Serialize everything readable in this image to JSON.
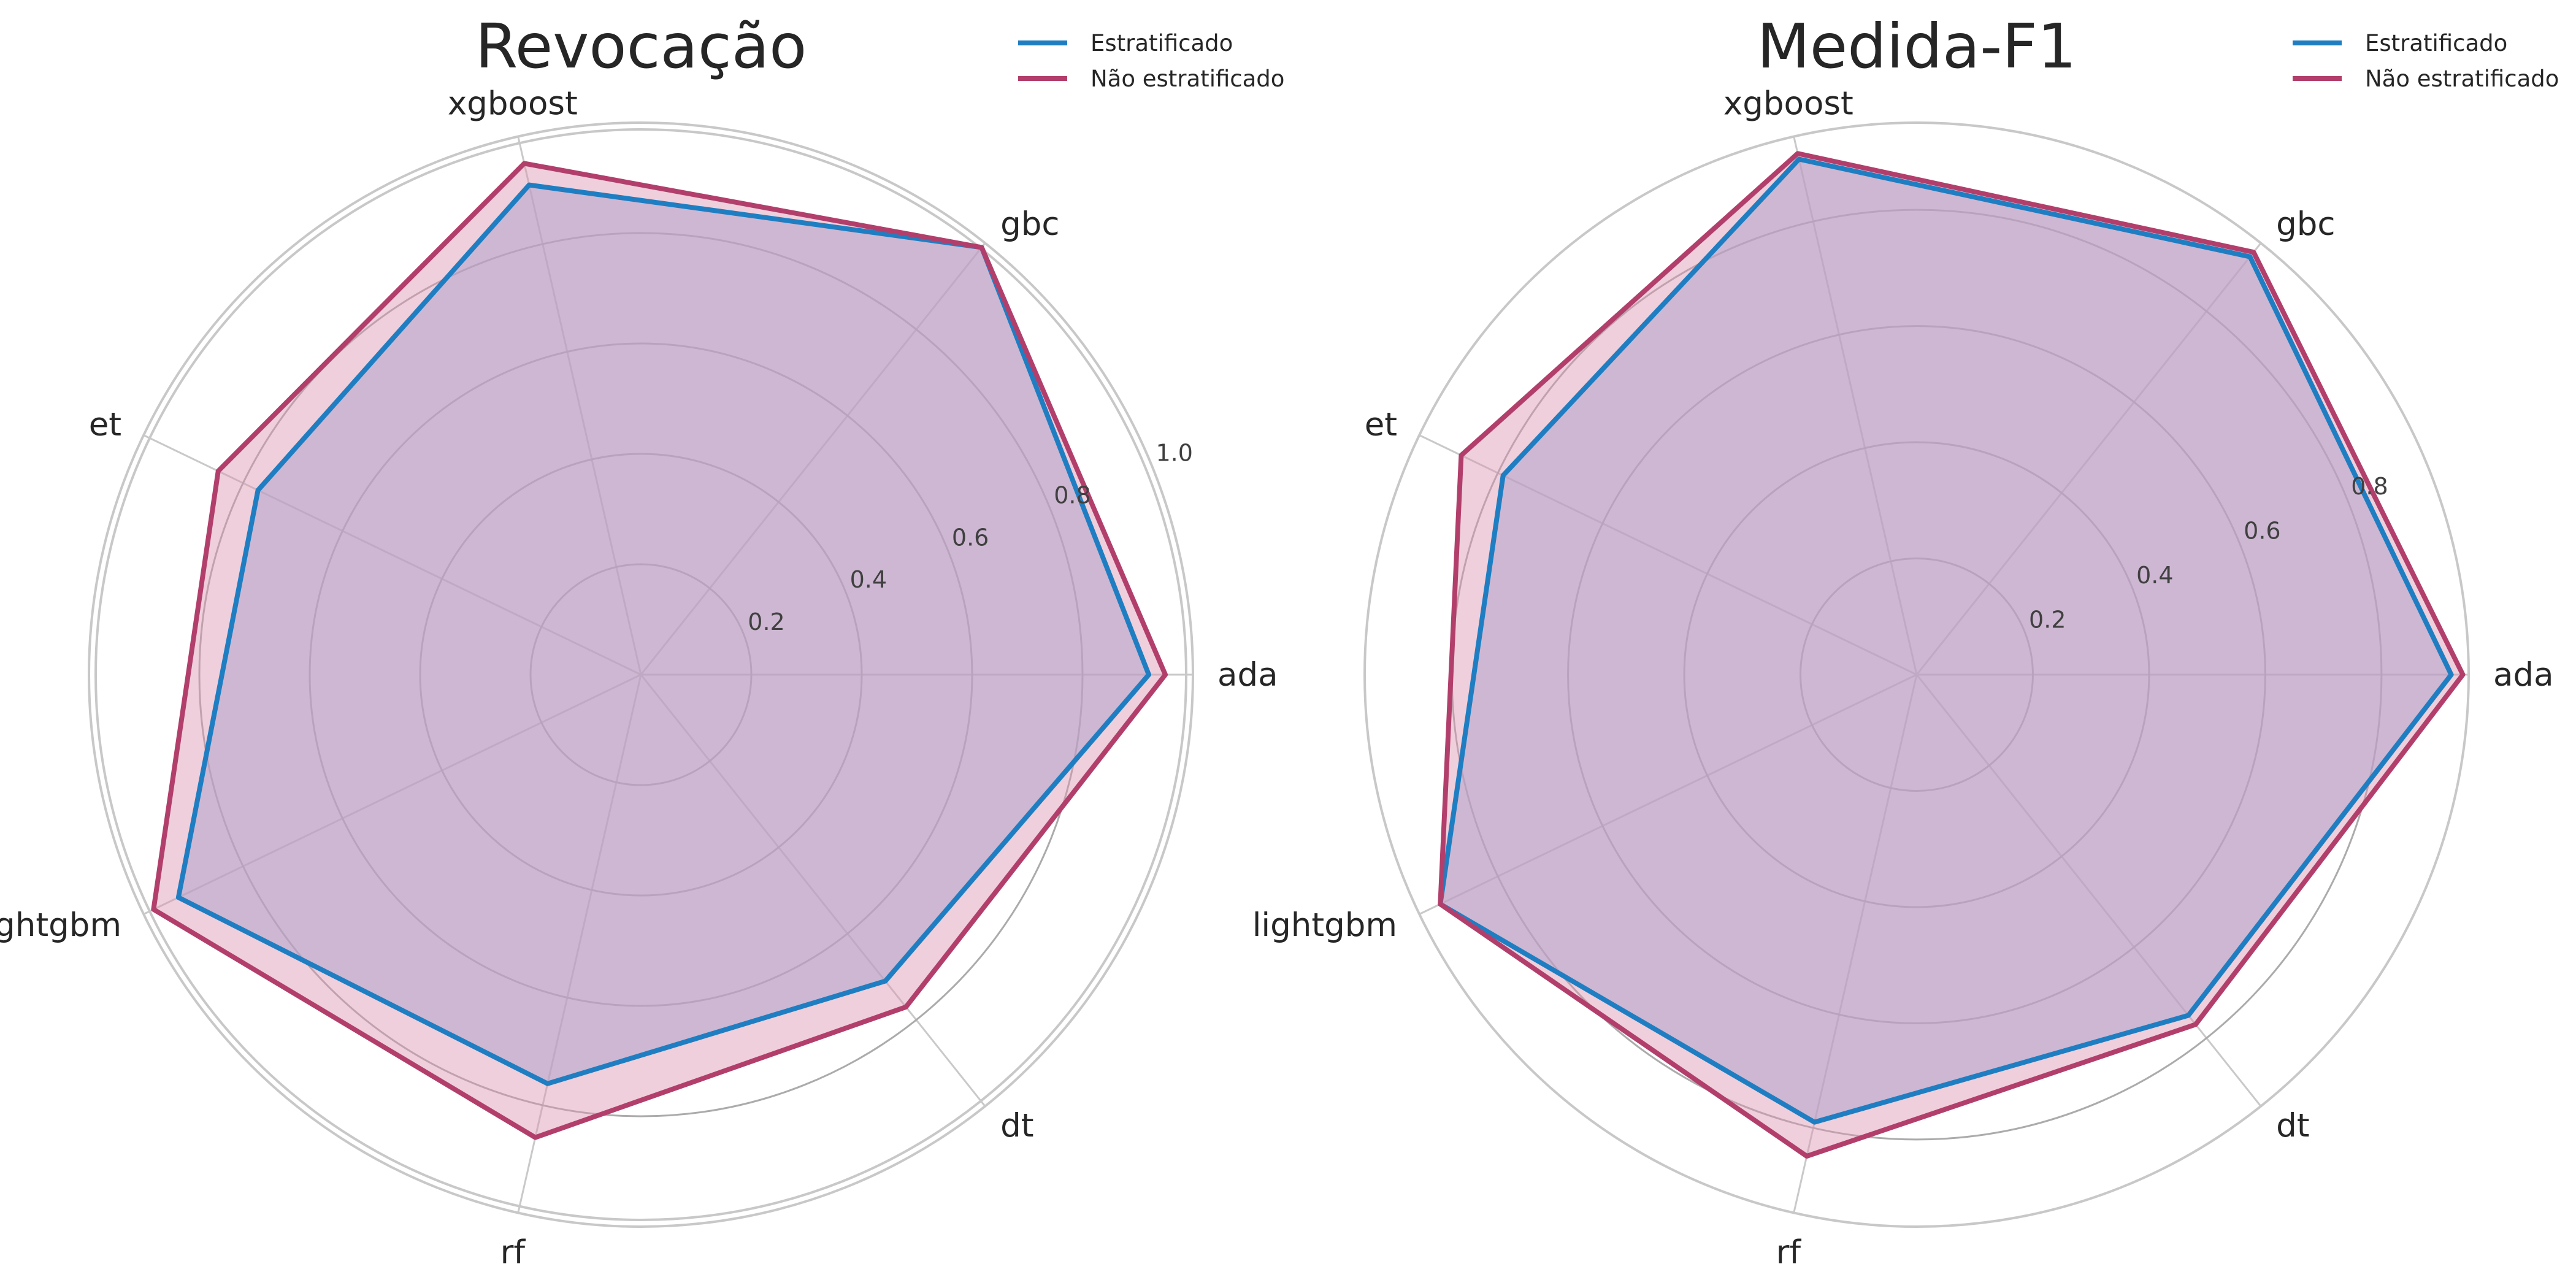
{
  "colors": {
    "stratified": "#1f7ec2",
    "non_stratified": "#b23f6b",
    "fill_stratified": "#8faee0",
    "fill_non_stratified": "#dc94b0"
  },
  "chart_data": [
    {
      "type": "radar",
      "title": "Revocação",
      "categories": [
        "ada",
        "gbc",
        "xgboost",
        "et",
        "lightgbm",
        "rf",
        "dt"
      ],
      "rlim": [
        0,
        1.0
      ],
      "rticks": [
        0.2,
        0.4,
        0.6,
        0.8,
        1.0
      ],
      "rtick_labels": [
        "0.2",
        "0.4",
        "0.6",
        "0.8",
        "1.0"
      ],
      "series": [
        {
          "name": "Estratificado",
          "values": [
            0.92,
            0.99,
            0.91,
            0.77,
            0.93,
            0.76,
            0.71
          ]
        },
        {
          "name": "Não estratificado",
          "values": [
            0.95,
            0.99,
            0.95,
            0.85,
            0.98,
            0.86,
            0.77
          ]
        }
      ],
      "legend": "top-right",
      "grid": true
    },
    {
      "type": "radar",
      "title": "Medida-F1",
      "categories": [
        "ada",
        "gbc",
        "xgboost",
        "et",
        "lightgbm",
        "rf",
        "dt"
      ],
      "rlim": [
        0,
        0.95
      ],
      "rticks": [
        0.2,
        0.4,
        0.6,
        0.8
      ],
      "rtick_labels": [
        "0.2",
        "0.4",
        "0.6",
        "0.8"
      ],
      "series": [
        {
          "name": "Estratificado",
          "values": [
            0.92,
            0.92,
            0.91,
            0.79,
            0.91,
            0.79,
            0.75
          ]
        },
        {
          "name": "Não estratificado",
          "values": [
            0.94,
            0.93,
            0.92,
            0.87,
            0.91,
            0.85,
            0.77
          ]
        }
      ],
      "legend": "top-right",
      "grid": true
    }
  ]
}
